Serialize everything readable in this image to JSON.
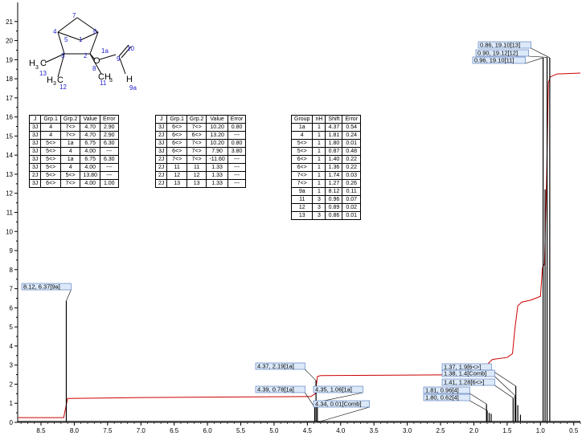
{
  "chart_data": {
    "type": "line",
    "xlim": [
      8.85,
      0.4
    ],
    "ylim": [
      0,
      22
    ],
    "x_ticks": [
      "8.5",
      "8.0",
      "7.5",
      "7.0",
      "6.5",
      "6.0",
      "5.5",
      "5.0",
      "4.5",
      "4.0",
      "3.5",
      "3.0",
      "2.5",
      "2.0",
      "1.5",
      "1.0",
      "0.5"
    ],
    "x_tick_values": [
      8.5,
      8.0,
      7.5,
      7.0,
      6.5,
      6.0,
      5.5,
      5.0,
      4.5,
      4.0,
      3.5,
      3.0,
      2.5,
      2.0,
      1.5,
      1.0,
      0.5
    ],
    "y_ticks": [
      "0",
      "1",
      "2",
      "3",
      "4",
      "5",
      "6",
      "7",
      "8",
      "9",
      "10",
      "11",
      "12",
      "13",
      "14",
      "15",
      "16",
      "17",
      "18",
      "19",
      "20",
      "21"
    ],
    "y_tick_values": [
      0,
      1,
      2,
      3,
      4,
      5,
      6,
      7,
      8,
      9,
      10,
      11,
      12,
      13,
      14,
      15,
      16,
      17,
      18,
      19,
      20,
      21
    ],
    "spectrum_peaks": [
      {
        "x": 8.12,
        "h": 6.37
      },
      {
        "x": 4.39,
        "h": 0.78
      },
      {
        "x": 4.37,
        "h": 2.19
      },
      {
        "x": 4.35,
        "h": 1.06
      },
      {
        "x": 4.34,
        "h": 0.01
      },
      {
        "x": 1.81,
        "h": 0.96
      },
      {
        "x": 1.8,
        "h": 0.62
      },
      {
        "x": 1.77,
        "h": 0.5
      },
      {
        "x": 1.74,
        "h": 0.45
      },
      {
        "x": 1.41,
        "h": 1.28
      },
      {
        "x": 1.38,
        "h": 1.4
      },
      {
        "x": 1.37,
        "h": 1.9
      },
      {
        "x": 1.34,
        "h": 0.9
      },
      {
        "x": 1.3,
        "h": 0.4
      },
      {
        "x": 0.96,
        "h": 19.1
      },
      {
        "x": 0.93,
        "h": 12.2
      },
      {
        "x": 0.9,
        "h": 19.12
      },
      {
        "x": 0.86,
        "h": 19.1
      }
    ],
    "integral_curve": [
      [
        8.85,
        0.25
      ],
      [
        8.16,
        0.25
      ],
      [
        8.1,
        1.25
      ],
      [
        7.0,
        1.3
      ],
      [
        4.45,
        1.35
      ],
      [
        4.38,
        1.5
      ],
      [
        4.35,
        2.4
      ],
      [
        4.3,
        2.45
      ],
      [
        2.0,
        2.5
      ],
      [
        1.82,
        2.6
      ],
      [
        1.78,
        3.1
      ],
      [
        1.72,
        3.3
      ],
      [
        1.5,
        3.4
      ],
      [
        1.42,
        3.6
      ],
      [
        1.38,
        5.0
      ],
      [
        1.34,
        6.1
      ],
      [
        1.28,
        6.3
      ],
      [
        1.15,
        6.4
      ],
      [
        1.0,
        6.6
      ],
      [
        0.97,
        8.1
      ],
      [
        0.94,
        8.3
      ],
      [
        0.91,
        12.5
      ],
      [
        0.88,
        17.8
      ],
      [
        0.85,
        18.1
      ],
      [
        0.75,
        18.25
      ],
      [
        0.4,
        18.3
      ]
    ],
    "peak_labels": [
      {
        "text": "8.12, 6.37[9a]",
        "x": 8.12
      },
      {
        "text": "4.37, 2.19[1a]",
        "x": 4.37
      },
      {
        "text": "4.39, 0.78[1a]",
        "x": 4.39
      },
      {
        "text": "4.35, 1.06[1a]",
        "x": 4.35
      },
      {
        "text": "4.34, 0.01[Comb]",
        "x": 4.34
      },
      {
        "text": "1.37, 1.9[6<>]",
        "x": 1.37
      },
      {
        "text": "1.38, 1.4[Comb]",
        "x": 1.38
      },
      {
        "text": "1.41, 1.28[6<>]",
        "x": 1.41
      },
      {
        "text": "1.81, 0.96[4]",
        "x": 1.81
      },
      {
        "text": "1.80, 0.62[4]",
        "x": 1.8
      },
      {
        "text": "0.86, 19.10[13]",
        "x": 0.86
      },
      {
        "text": "0.90, 19.12[12]",
        "x": 0.9
      },
      {
        "text": "0.96, 19.10[11]",
        "x": 0.96
      }
    ],
    "colors": {
      "spectrum": "#000000",
      "integral": "#cc0000",
      "labels": "#dbe9f9",
      "atom_numbers": "#2222cc"
    }
  },
  "molecule": {
    "atoms": [
      "7",
      "6",
      "4",
      "5",
      "1",
      "1a",
      "2",
      "O",
      "10",
      "3",
      "H",
      "3",
      "13",
      "C",
      "H",
      "3",
      "C",
      "12",
      "8",
      "CH",
      "3",
      "11",
      "9",
      "H",
      "9a"
    ]
  },
  "tables": {
    "coupling_headers": [
      "J",
      "Grp.1",
      "Grp.2",
      "Value",
      "Error"
    ],
    "coupling_left": [
      [
        "3J",
        "4",
        "7<>",
        "4.70",
        "2.90"
      ],
      [
        "3J",
        "4",
        "7<>",
        "4.70",
        "2.90"
      ],
      [
        "3J",
        "5<>",
        "1a",
        "6.75",
        "6.30"
      ],
      [
        "3J",
        "5<>",
        "4",
        "4.00",
        "---"
      ],
      [
        "3J",
        "5<>",
        "1a",
        "6.75",
        "6.30"
      ],
      [
        "3J",
        "5<>",
        "4",
        "4.00",
        "---"
      ],
      [
        "2J",
        "5<>",
        "5<>",
        "13.80",
        "---"
      ],
      [
        "3J",
        "6<>",
        "7<>",
        "4.00",
        "1.00"
      ]
    ],
    "coupling_right": [
      [
        "3J",
        "6<>",
        "7<>",
        "10.20",
        "0.80"
      ],
      [
        "2J",
        "6<>",
        "6<>",
        "13.20",
        "---"
      ],
      [
        "3J",
        "6<>",
        "7<>",
        "10.20",
        "0.80"
      ],
      [
        "3J",
        "6<>",
        "7<>",
        "7.90",
        "3.80"
      ],
      [
        "2J",
        "7<>",
        "7<>",
        "-11.60",
        "---"
      ],
      [
        "2J",
        "11",
        "11",
        "1.33",
        "---"
      ],
      [
        "2J",
        "12",
        "12",
        "1.33",
        "---"
      ],
      [
        "2J",
        "13",
        "13",
        "1.33",
        "---"
      ]
    ],
    "shift_headers": [
      "Group",
      "nH",
      "Shift",
      "Error"
    ],
    "shift_rows": [
      [
        "1a",
        "1",
        "4.37",
        "0.54"
      ],
      [
        "4",
        "1",
        "1.81",
        "0.24"
      ],
      [
        "5<>",
        "1",
        "1.80",
        "0.01"
      ],
      [
        "5<>",
        "1",
        "0.87",
        "0.48"
      ],
      [
        "6<>",
        "1",
        "1.40",
        "0.22"
      ],
      [
        "6<>",
        "1",
        "1.36",
        "0.22"
      ],
      [
        "7<>",
        "1",
        "1.74",
        "0.03"
      ],
      [
        "7<>",
        "1",
        "1.27",
        "0.26"
      ],
      [
        "9a",
        "1",
        "8.12",
        "0.11"
      ],
      [
        "11",
        "3",
        "0.96",
        "0.07"
      ],
      [
        "12",
        "3",
        "0.89",
        "0.02"
      ],
      [
        "13",
        "3",
        "0.86",
        "0.01"
      ]
    ]
  }
}
